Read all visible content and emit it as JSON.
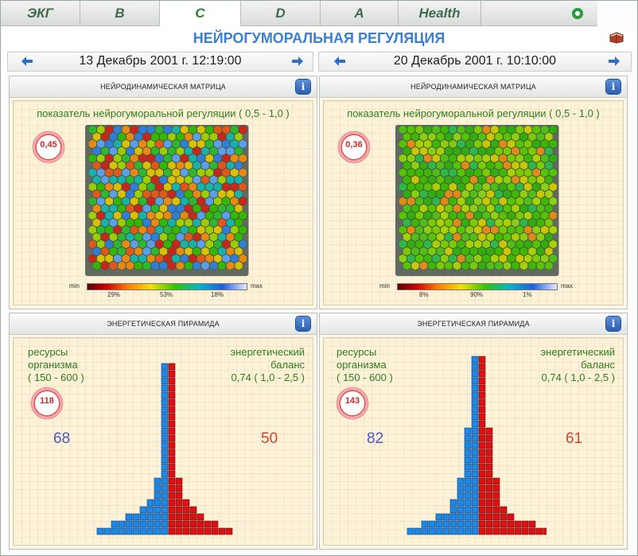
{
  "tabs": [
    {
      "label": "ЭКГ",
      "active": false
    },
    {
      "label": "B",
      "active": false
    },
    {
      "label": "C",
      "active": true
    },
    {
      "label": "D",
      "active": false
    },
    {
      "label": "A",
      "active": false
    },
    {
      "label": "Health",
      "active": false
    }
  ],
  "page_title": "НЕЙРОГУМОРАЛЬНАЯ РЕГУЛЯЦИЯ",
  "colors": {
    "accent": "#3b7fd0",
    "label_green": "#2e7d1f",
    "red_bar": "#dd1111",
    "blue_bar": "#1e88e5",
    "gauge_red": "#c72b2b"
  },
  "left": {
    "date": "13 Декабрь 2001 г. 12:19:00",
    "matrix_panel": {
      "title": "НЕЙРОДИНАМИЧЕСКАЯ МАТРИЦА",
      "label": "показатель нейрогуморальной регуляции ( 0,5 - 1,0 )",
      "gauge_value": "0,45",
      "legend_min": "min",
      "legend_max": "max",
      "legend_pcts": [
        "29%",
        "53%",
        "18%"
      ]
    },
    "pyramid_panel": {
      "title": "ЭНЕРГЕТИЧЕСКАЯ ПИРАМИДА",
      "left_label_lines": [
        "ресурсы",
        "организма",
        "( 150 - 600 )"
      ],
      "right_label_lines": [
        "энергетический",
        "баланс",
        "0,74 ( 1,0 - 2,5 )"
      ],
      "gauge_value": "118",
      "blue_count": "68",
      "red_count": "50"
    }
  },
  "right": {
    "date": "20 Декабрь 2001 г. 10:10:00",
    "matrix_panel": {
      "title": "НЕЙРОДИНАМИЧЕСКАЯ МАТРИЦА",
      "label": "показатель нейрогуморальной регуляции ( 0,5 - 1,0 )",
      "gauge_value": "0,36",
      "legend_min": "min",
      "legend_max": "max",
      "legend_pcts": [
        "8%",
        "90%",
        "1%"
      ]
    },
    "pyramid_panel": {
      "title": "ЭНЕРГЕТИЧЕСКАЯ ПИРАМИДА",
      "left_label_lines": [
        "ресурсы",
        "организма",
        "( 150 - 600 )"
      ],
      "right_label_lines": [
        "энергетический",
        "баланс",
        "0,74 ( 1,0 - 2,5 )"
      ],
      "gauge_value": "143",
      "blue_count": "82",
      "red_count": "61"
    }
  },
  "icons": [
    "nav-left-arrow-icon",
    "nav-right-arrow-icon",
    "info-icon",
    "gear-icon",
    "book-icon"
  ]
}
